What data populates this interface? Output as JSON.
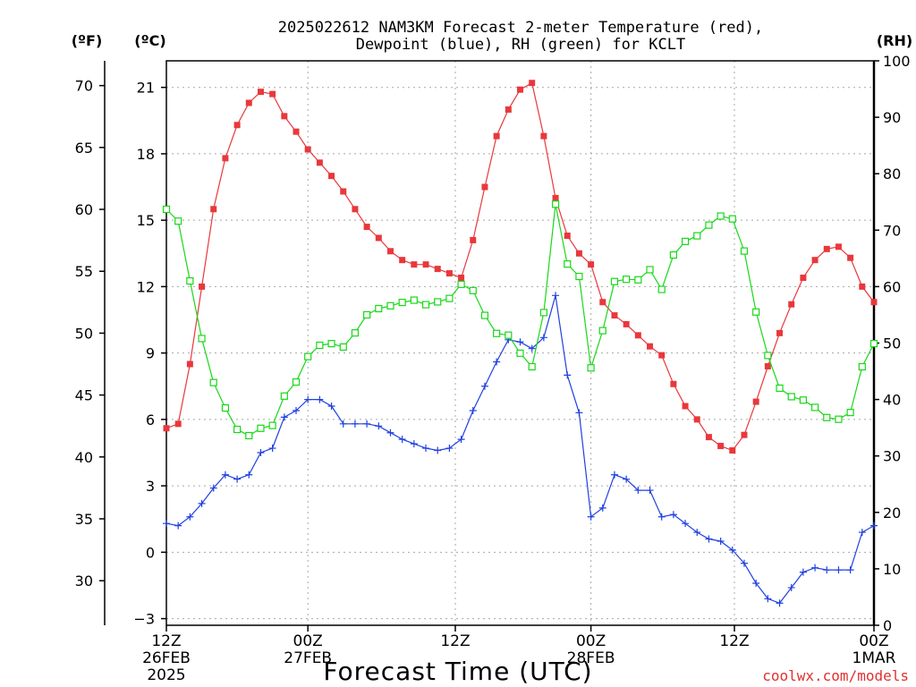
{
  "header": {
    "title_line1": "2025022612 NAM3KM Forecast 2-meter Temperature (red),",
    "title_line2": "Dewpoint (blue), RH (green) for KCLT",
    "unit_f": "(ºF)",
    "unit_c": "(ºC)",
    "unit_rh": "(RH)"
  },
  "footer": {
    "xtitle": "Forecast Time (UTC)",
    "credit": "coolwx.com/models"
  },
  "colors": {
    "temperature": "#e8383c",
    "dewpoint": "#2040e0",
    "rh": "#18d818",
    "grid": "#a8a8a8"
  },
  "chart_data": {
    "type": "line",
    "x_unit": "hours since 2025-02-26 12Z",
    "x_range": [
      0,
      36
    ],
    "x_step_hours": 0.6,
    "x_ticks": [
      {
        "hour": 0,
        "lines": [
          "12Z",
          "26FEB",
          "2025"
        ]
      },
      {
        "hour": 7.2,
        "lines": [
          "00Z",
          "27FEB"
        ]
      },
      {
        "hour": 14.7,
        "lines": [
          "12Z"
        ]
      },
      {
        "hour": 21.6,
        "lines": [
          "00Z",
          "28FEB"
        ]
      },
      {
        "hour": 28.9,
        "lines": [
          "12Z"
        ]
      },
      {
        "hour": 36,
        "lines": [
          "00Z",
          "1MAR"
        ]
      }
    ],
    "y_celsius": {
      "range": [
        -3.3,
        22.2
      ],
      "ticks": [
        -3,
        0,
        3,
        6,
        9,
        12,
        15,
        18,
        21
      ]
    },
    "y_fahrenheit": {
      "range": [
        26.4,
        72.0
      ],
      "ticks": [
        30,
        35,
        40,
        45,
        50,
        55,
        60,
        65,
        70
      ]
    },
    "y_rh": {
      "range": [
        0,
        100
      ],
      "ticks": [
        0,
        10,
        20,
        30,
        40,
        50,
        60,
        70,
        80,
        90,
        100
      ]
    },
    "grid": true,
    "series": [
      {
        "name": "Temperature",
        "axis": "celsius",
        "marker": "filled-square",
        "values": [
          5.6,
          5.8,
          8.5,
          12.0,
          15.5,
          17.8,
          19.3,
          20.3,
          20.8,
          20.7,
          19.7,
          19.0,
          18.2,
          17.6,
          17.0,
          16.3,
          15.5,
          14.7,
          14.2,
          13.6,
          13.2,
          13.0,
          13.0,
          12.8,
          12.6,
          12.4,
          14.1,
          16.5,
          18.8,
          20.0,
          20.9,
          21.2,
          18.8,
          16.0,
          14.3,
          13.5,
          13.0,
          11.3,
          10.7,
          10.3,
          9.8,
          9.3,
          8.9,
          7.6,
          6.6,
          6.0,
          5.2,
          4.8,
          4.6,
          5.3,
          6.8,
          8.4,
          9.9,
          11.2,
          12.4,
          13.2,
          13.7,
          13.8,
          13.3,
          12.0,
          11.3
        ]
      },
      {
        "name": "Dewpoint",
        "axis": "celsius",
        "marker": "plus",
        "values": [
          1.3,
          1.2,
          1.6,
          2.2,
          2.9,
          3.5,
          3.3,
          3.5,
          4.5,
          4.7,
          6.1,
          6.4,
          6.9,
          6.9,
          6.6,
          5.8,
          5.8,
          5.8,
          5.7,
          5.4,
          5.1,
          4.9,
          4.7,
          4.6,
          4.7,
          5.1,
          6.4,
          7.5,
          8.6,
          9.6,
          9.5,
          9.2,
          9.7,
          11.6,
          8.0,
          6.3,
          1.6,
          2.0,
          3.5,
          3.3,
          2.8,
          2.8,
          1.6,
          1.7,
          1.3,
          0.9,
          0.6,
          0.5,
          0.1,
          -0.5,
          -1.4,
          -2.1,
          -2.3,
          -1.6,
          -0.9,
          -0.7,
          -0.8,
          -0.8,
          -0.8,
          0.9,
          1.2
        ]
      },
      {
        "name": "RH",
        "axis": "rh",
        "marker": "hollow-square",
        "values": [
          73.7,
          71.6,
          61.0,
          50.8,
          43.0,
          38.5,
          34.7,
          33.6,
          34.9,
          35.4,
          40.6,
          43.1,
          47.6,
          49.6,
          49.9,
          49.3,
          51.8,
          55.0,
          56.1,
          56.6,
          57.2,
          57.6,
          56.8,
          57.3,
          57.9,
          60.4,
          59.3,
          54.9,
          51.7,
          51.4,
          48.2,
          45.8,
          55.4,
          74.6,
          64.0,
          61.8,
          45.6,
          52.2,
          60.9,
          61.3,
          61.2,
          63.0,
          59.5,
          65.6,
          68.0,
          69.0,
          70.9,
          72.5,
          72.0,
          66.3,
          55.5,
          47.8,
          42.0,
          40.5,
          39.9,
          38.6,
          36.8,
          36.5,
          37.7,
          45.8,
          49.9
        ]
      }
    ]
  }
}
